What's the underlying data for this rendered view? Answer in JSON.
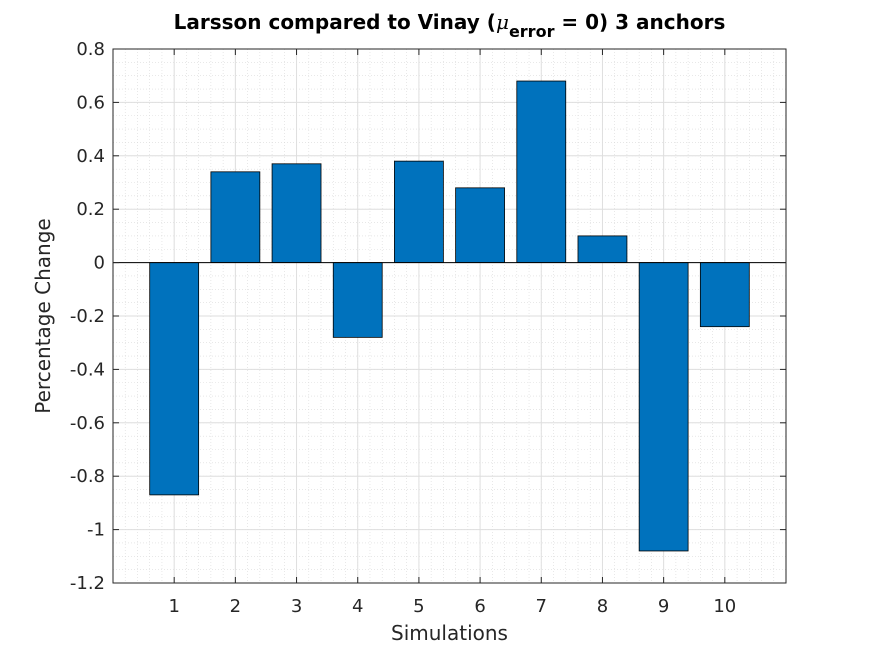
{
  "chart_data": {
    "type": "bar",
    "title_parts": {
      "prefix": "Larsson compared to Vinay (",
      "mu": "μ",
      "subscript": "error",
      "suffix": " = 0) 3 anchors"
    },
    "xlabel": "Simulations",
    "ylabel": "Percentage Change",
    "categories": [
      "1",
      "2",
      "3",
      "4",
      "5",
      "6",
      "7",
      "8",
      "9",
      "10"
    ],
    "values": [
      -0.87,
      0.34,
      0.37,
      -0.28,
      0.38,
      0.28,
      0.68,
      0.1,
      -1.08,
      -0.24
    ],
    "ylim": [
      -1.2,
      0.8
    ],
    "xlim": [
      0,
      11
    ],
    "yticks": [
      "-1.2",
      "-1",
      "-0.8",
      "-0.6",
      "-0.4",
      "-0.2",
      "0",
      "0.2",
      "0.4",
      "0.6",
      "0.8"
    ],
    "grid": true,
    "minor_grid": true,
    "bar_color": "#0072BD",
    "legend": "none"
  }
}
